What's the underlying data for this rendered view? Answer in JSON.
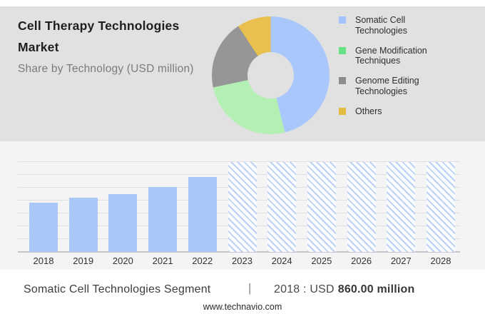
{
  "header": {
    "title": "Cell Therapy Technologies Market",
    "subtitle": "Share by Technology (USD million)"
  },
  "chart_data": [
    {
      "type": "pie",
      "donut": true,
      "title": "Share by Technology (USD million)",
      "labels": [
        "Somatic Cell Technologies",
        "Gene Modification Techniques",
        "Genome Editing Technologies",
        "Others"
      ],
      "values_pct": [
        46.1,
        25.6,
        19.0,
        9.3
      ],
      "slice_colors": [
        "#a9c7fb",
        "#b4efb4",
        "#969696",
        "#e9c04e"
      ],
      "legend_colors": [
        "#a2c3fa",
        "#69e187",
        "#8d8d8d",
        "#e3bd40"
      ],
      "legend_position": "right"
    },
    {
      "type": "bar",
      "categories": [
        "2018",
        "2019",
        "2020",
        "2021",
        "2022",
        "2023",
        "2024",
        "2025",
        "2026",
        "2027",
        "2028"
      ],
      "series": [
        {
          "name": "Somatic Cell Technologies",
          "values": [
            860,
            950,
            1005,
            1135,
            1305,
            null,
            null,
            null,
            null,
            null,
            null
          ]
        }
      ],
      "forecast_categories": [
        "2023",
        "2024",
        "2025",
        "2026",
        "2027",
        "2028"
      ],
      "ylim": [
        0,
        1570
      ],
      "gridline_count": 8,
      "bar_color": "#a9c8f8",
      "forecast_hatch_color": "#bcd2f4",
      "labeled_value": {
        "category": "2018",
        "text": "USD 860.00 million"
      }
    }
  ],
  "bottom": {
    "segment_label": "Somatic Cell Technologies Segment",
    "separator": "|",
    "value_prefix": "2018 : USD",
    "value_bold": "860.00 million"
  },
  "footer": {
    "url": "www.technavio.com"
  },
  "colors": {
    "top_panel_bg": "#e1e1e1",
    "chart_panel_bg": "#f4f4f5",
    "gridline": "#dfdfe1",
    "baseline": "#c6c6c9"
  }
}
